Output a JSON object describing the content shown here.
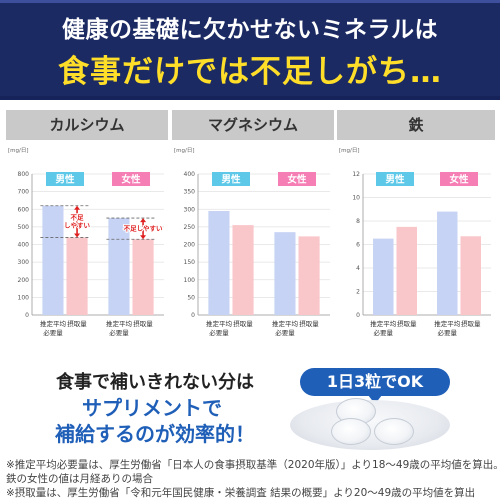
{
  "header": {
    "line1": "健康の基礎に欠かせないミネラルは",
    "line2": "食事だけでは不足しがち…"
  },
  "colors": {
    "banner": "#1c2a63",
    "headline_accent": "#ffde2a",
    "male_badge": "#5ec8e8",
    "female_badge": "#f57eb4",
    "recommended_bar": "#c7d3f4",
    "intake_bar": "#f9c6c9",
    "warning_red": "#e02020",
    "emphasis_blue": "#1f5fb8"
  },
  "chart_data": [
    {
      "type": "bar",
      "title": "カルシウム",
      "unit": "[mg/日]",
      "ylim": [
        0,
        800
      ],
      "yticks": [
        "0",
        "100",
        "200",
        "300",
        "400",
        "500",
        "600",
        "700",
        "800"
      ],
      "groups": [
        "男性",
        "女性"
      ],
      "categories": [
        "推定平均\n必要量",
        "摂取量"
      ],
      "series": [
        {
          "group": "男性",
          "values": [
            620,
            440
          ]
        },
        {
          "group": "女性",
          "values": [
            550,
            430
          ]
        }
      ],
      "annotations": [
        "不足\nしやすい",
        "不足しやすい"
      ]
    },
    {
      "type": "bar",
      "title": "マグネシウム",
      "unit": "[mg/日]",
      "ylim": [
        0,
        400
      ],
      "yticks": [
        "0",
        "50",
        "100",
        "150",
        "200",
        "250",
        "300",
        "350",
        "400"
      ],
      "groups": [
        "男性",
        "女性"
      ],
      "categories": [
        "推定平均\n必要量",
        "摂取量"
      ],
      "series": [
        {
          "group": "男性",
          "values": [
            295,
            255
          ]
        },
        {
          "group": "女性",
          "values": [
            235,
            223
          ]
        }
      ]
    },
    {
      "type": "bar",
      "title": "鉄",
      "unit": "[mg/日]",
      "ylim": [
        0,
        12
      ],
      "yticks": [
        "0",
        "2",
        "4",
        "6",
        "8",
        "10",
        "12"
      ],
      "groups": [
        "男性",
        "女性"
      ],
      "categories": [
        "推定平均\n必要量",
        "摂取量"
      ],
      "series": [
        {
          "group": "男性",
          "values": [
            6.5,
            7.5
          ]
        },
        {
          "group": "女性",
          "values": [
            8.8,
            6.7
          ]
        }
      ]
    }
  ],
  "lower": {
    "line1": "食事で補いきれない分は",
    "line2": "サプリメントで",
    "line3": "補給するのが効率的！",
    "bubble": "1日3粒でOK"
  },
  "footnotes": [
    "※推定平均必要量は、厚生労働省「日本人の食事摂取基準（2020年版）」より18〜49歳の平均値を算出。",
    "鉄の女性の値は月経ありの場合",
    "※摂取量は、厚生労働省「令和元年国民健康・栄養調査 結果の概要」より20〜49歳の平均値を算出"
  ]
}
